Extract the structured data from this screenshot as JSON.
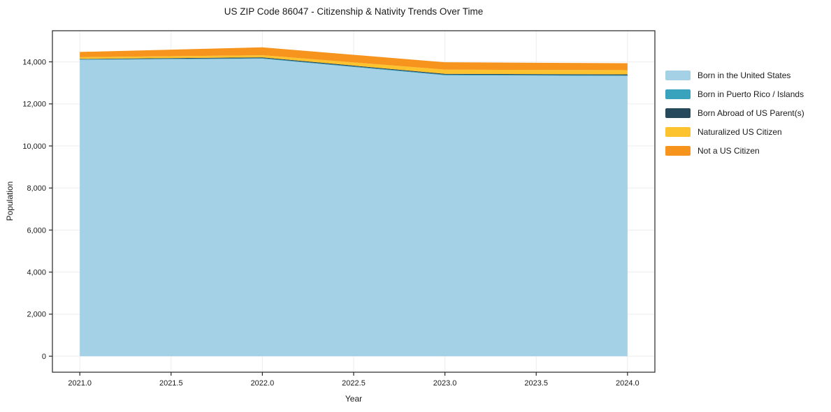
{
  "figure": {
    "title": "US ZIP Code 86047 - Citizenship & Nativity Trends Over Time",
    "background": "#ffffff"
  },
  "chart_data": {
    "type": "area",
    "stacked": true,
    "title": "US ZIP Code 86047 - Citizenship & Nativity Trends Over Time",
    "xlabel": "Year",
    "ylabel": "Population",
    "x": [
      2021,
      2022,
      2023,
      2024
    ],
    "series": [
      {
        "name": "Born in the United States",
        "color": "#a5d1e6",
        "values": [
          14100,
          14150,
          13360,
          13330
        ]
      },
      {
        "name": "Born in Puerto Rico / Islands",
        "color": "#39a3bd",
        "values": [
          20,
          25,
          30,
          30
        ]
      },
      {
        "name": "Born Abroad of US Parent(s)",
        "color": "#27495c",
        "values": [
          20,
          40,
          40,
          45
        ]
      },
      {
        "name": "Naturalized US Citizen",
        "color": "#fdc32f",
        "values": [
          80,
          100,
          200,
          200
        ]
      },
      {
        "name": "Not a US Citizen",
        "color": "#f7941d",
        "values": [
          250,
          375,
          350,
          330
        ]
      }
    ],
    "xlim": [
      2020.85,
      2024.15
    ],
    "ylim": [
      -760,
      15480
    ],
    "xticks": {
      "values": [
        2021.0,
        2021.5,
        2022.0,
        2022.5,
        2023.0,
        2023.5,
        2024.0
      ],
      "labels": [
        "2021.0",
        "2021.5",
        "2022.0",
        "2022.5",
        "2023.0",
        "2023.5",
        "2024.0"
      ]
    },
    "yticks": {
      "values": [
        0,
        2000,
        4000,
        6000,
        8000,
        10000,
        12000,
        14000
      ],
      "labels": [
        "0",
        "2,000",
        "4,000",
        "6,000",
        "8,000",
        "10,000",
        "12,000",
        "14,000"
      ]
    },
    "grid": true,
    "legend_position": "right-outside"
  },
  "colors": {
    "axis": "#262626",
    "grid": "#ededed",
    "text": "#1a1a1a"
  }
}
